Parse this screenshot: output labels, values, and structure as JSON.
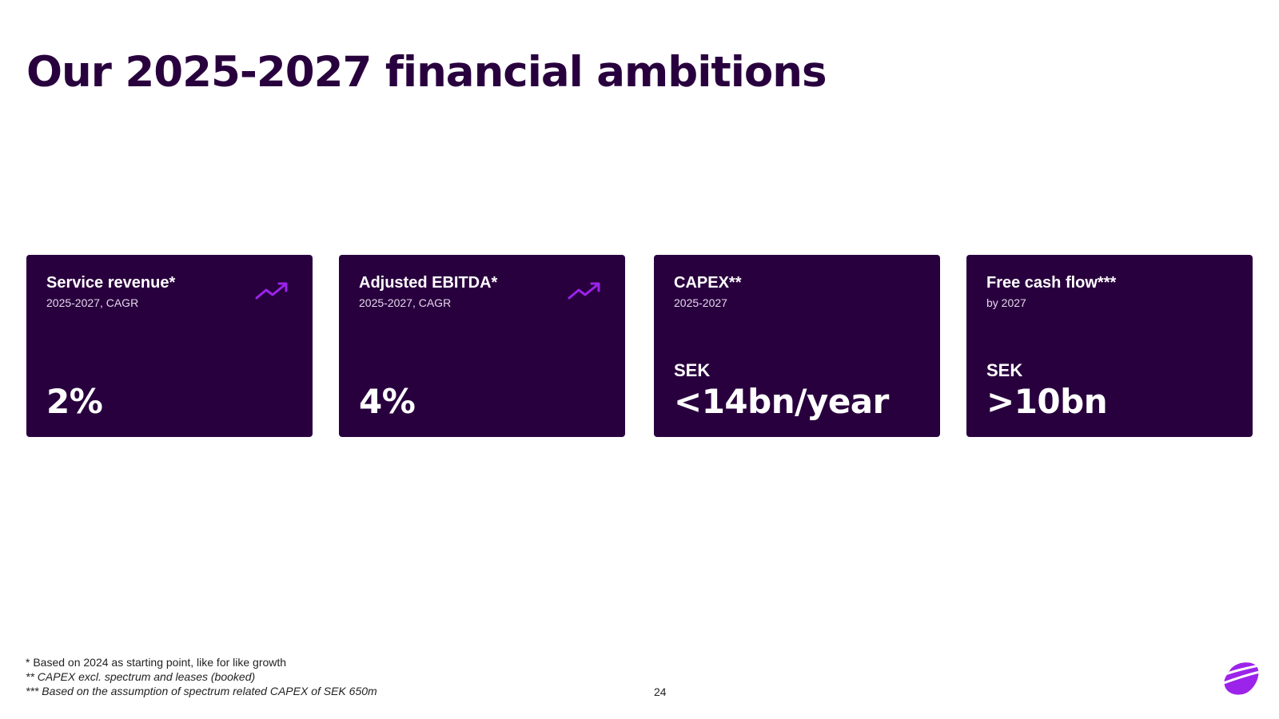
{
  "slide": {
    "title": "Our 2025-2027 financial ambitions",
    "page_number": "24"
  },
  "colors": {
    "card_background": "#29003e",
    "accent_purple": "#9b23ea",
    "title_color": "#29003e"
  },
  "cards": [
    {
      "title": "Service revenue*",
      "subtitle": "2025-2027, CAGR",
      "prefix": "",
      "value": "2%",
      "icon": "trend-up-icon"
    },
    {
      "title": "Adjusted EBITDA*",
      "subtitle": "2025-2027, CAGR",
      "prefix": "",
      "value": "4%",
      "icon": "trend-up-icon"
    },
    {
      "title": "CAPEX**",
      "subtitle": "2025-2027",
      "prefix": "SEK",
      "value": "<14bn/year",
      "icon": ""
    },
    {
      "title": "Free cash flow***",
      "subtitle": "by 2027",
      "prefix": "SEK",
      "value": ">10bn",
      "icon": ""
    }
  ],
  "footnotes": [
    "* Based on 2024 as starting point, like for like growth",
    "** CAPEX excl. spectrum and leases (booked)",
    "*** Based on the assumption of spectrum related CAPEX of SEK 650m"
  ],
  "logo": {
    "icon": "telia-pebble-logo"
  }
}
